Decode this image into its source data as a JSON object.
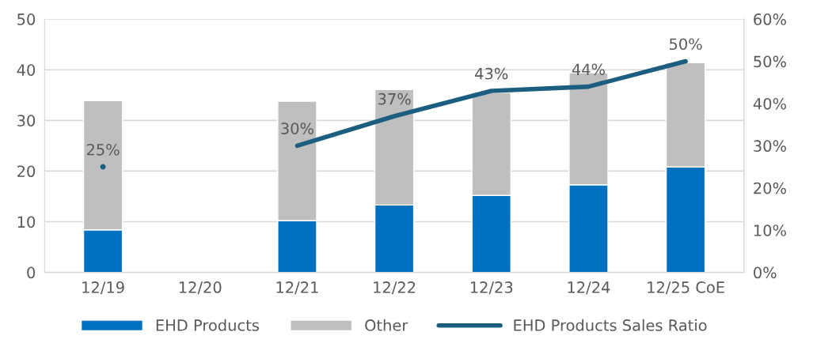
{
  "chart_data": {
    "type": "bar",
    "stacked": true,
    "categories": [
      "12/19",
      "12/20",
      "12/21",
      "12/22",
      "12/23",
      "12/24",
      "12/25 CoE"
    ],
    "series": [
      {
        "name": "EHD Products",
        "color": "#0070c0",
        "values": [
          8.4,
          null,
          10.2,
          13.3,
          15.2,
          17.3,
          20.8
        ]
      },
      {
        "name": "Other",
        "color": "#bfbfbf",
        "values": [
          25.5,
          null,
          23.6,
          22.8,
          20.3,
          22.1,
          20.6
        ]
      },
      {
        "name": "EHD Products Sales Ratio",
        "type": "line",
        "axis": "y2",
        "color": "#1b5e80",
        "values": [
          25,
          null,
          30,
          37,
          43,
          44,
          50
        ],
        "value_labels": [
          "25%",
          null,
          "30%",
          "37%",
          "43%",
          "44%",
          "50%"
        ]
      }
    ],
    "ylim": [
      0,
      50
    ],
    "yticks": [
      0,
      10,
      20,
      30,
      40,
      50
    ],
    "y2lim": [
      0,
      60
    ],
    "y2ticks": [
      {
        "value": 0,
        "label": "0%"
      },
      {
        "value": 10,
        "label": "10%"
      },
      {
        "value": 20,
        "label": "20%"
      },
      {
        "value": 30,
        "label": "30%"
      },
      {
        "value": 40,
        "label": "40%"
      },
      {
        "value": 50,
        "label": "50%"
      },
      {
        "value": 60,
        "label": "60%"
      }
    ],
    "grid": "y",
    "legend": "bottom",
    "marker": "none",
    "line_style": "solid"
  }
}
